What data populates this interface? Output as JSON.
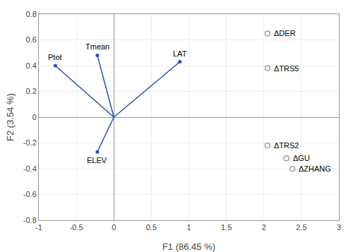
{
  "chart_data": {
    "type": "biplot",
    "xlabel": "F1 (86.45 %)",
    "ylabel": "F2 (3.54 %)",
    "xlim": [
      -1,
      3
    ],
    "ylim": [
      -0.8,
      0.8
    ],
    "xticks": [
      -1,
      -0.5,
      0,
      0.5,
      1,
      1.5,
      2,
      2.5,
      3
    ],
    "yticks": [
      -0.8,
      -0.6,
      -0.4,
      -0.2,
      0,
      0.2,
      0.4,
      0.6,
      0.8
    ],
    "grid": true,
    "series": [
      {
        "type": "vector",
        "color": "#2B4DAE",
        "labels": [
          "Ptot",
          "Tmean",
          "LAT",
          "ELEV"
        ],
        "x": [
          -0.78,
          -0.22,
          0.88,
          -0.22
        ],
        "values": [
          0.4,
          0.48,
          0.43,
          -0.27
        ]
      },
      {
        "type": "scatter",
        "marker": "open_circle",
        "color": "#888888",
        "labels": [
          "ΔDER",
          "ΔTRS5",
          "ΔTRS2",
          "ΔGU",
          "ΔZHANG"
        ],
        "x": [
          2.05,
          2.05,
          2.05,
          2.3,
          2.38
        ],
        "values": [
          0.65,
          0.38,
          -0.22,
          -0.32,
          -0.4
        ]
      }
    ]
  }
}
